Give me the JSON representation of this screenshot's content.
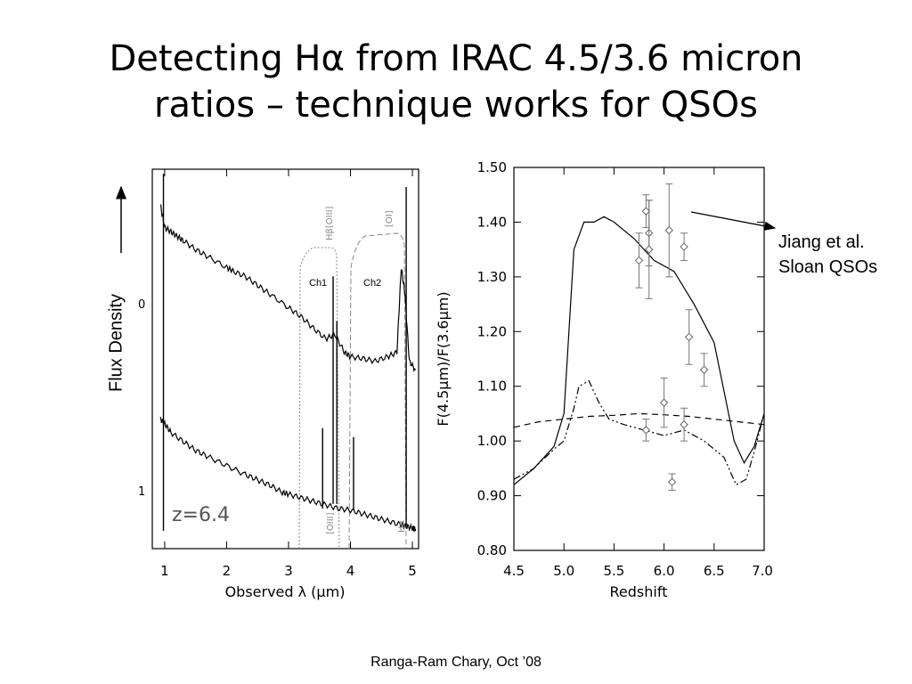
{
  "title": {
    "line1": "Detecting Hα from IRAC 4.5/3.6 micron",
    "line2": "ratios – technique works for QSOs"
  },
  "footer": "Ranga-Ram Chary, Oct ’08",
  "flux_label": "Flux Density",
  "annotation": {
    "line1": "Jiang et al.",
    "line2": "Sloan QSOs"
  },
  "chart_data": [
    {
      "type": "line",
      "panel": "spectrum",
      "xlabel": "Observed λ (μm)",
      "xticks": [
        "1",
        "2",
        "3",
        "4",
        "5"
      ],
      "xlim": [
        0.8,
        5.1
      ],
      "ytick_labels": [
        "0",
        "1"
      ],
      "filter_labels": [
        "Ch1",
        "Ch2"
      ],
      "line_labels": [
        "Hβ[OIII]",
        "[OI]",
        "[OIII]",
        "Hα"
      ],
      "redshift_label": "z=6.4",
      "series": [
        {
          "x": [
            0.93,
            1.0,
            1.1,
            1.2,
            1.3,
            1.5,
            1.7,
            2.0,
            2.1,
            2.3,
            2.5,
            2.7,
            3.0,
            3.2,
            3.4,
            3.6,
            3.75,
            3.9,
            4.0,
            4.2,
            4.4,
            4.6,
            4.75,
            4.82,
            4.88,
            4.95,
            5.05
          ],
          "y": [
            4.2,
            3.95,
            3.9,
            3.85,
            3.8,
            3.7,
            3.62,
            3.5,
            3.46,
            3.4,
            3.3,
            3.2,
            3.05,
            2.95,
            2.82,
            2.7,
            2.75,
            2.55,
            2.5,
            2.48,
            2.45,
            2.5,
            2.55,
            3.5,
            3.2,
            2.45,
            2.35
          ]
        },
        {
          "x": [
            0.93,
            1.0,
            1.1,
            1.3,
            1.5,
            1.7,
            2.0,
            2.3,
            2.5,
            2.7,
            2.9,
            3.0,
            3.2,
            3.4,
            3.6,
            3.8,
            4.0,
            4.2,
            4.4,
            4.6,
            4.8,
            4.9,
            5.0,
            5.05
          ],
          "y": [
            1.8,
            1.75,
            1.65,
            1.55,
            1.45,
            1.38,
            1.28,
            1.18,
            1.12,
            1.06,
            0.98,
            0.96,
            0.92,
            0.88,
            0.84,
            0.8,
            0.78,
            0.74,
            0.7,
            0.66,
            0.62,
            0.6,
            0.58,
            0.57
          ]
        }
      ]
    },
    {
      "type": "line",
      "panel": "ratio",
      "xlabel": "Redshift",
      "ylabel": "F(4.5μm)/F(3.6μm)",
      "xlim": [
        4.5,
        7.0
      ],
      "ylim": [
        0.8,
        1.5
      ],
      "xticks": [
        "4.5",
        "5.0",
        "5.5",
        "6.0",
        "6.5",
        "7.0"
      ],
      "yticks": [
        "0.80",
        "0.90",
        "1.00",
        "1.10",
        "1.20",
        "1.30",
        "1.40",
        "1.50"
      ],
      "series": [
        {
          "x": [
            4.5,
            4.7,
            4.9,
            5.0,
            5.1,
            5.2,
            5.3,
            5.4,
            5.5,
            5.7,
            5.9,
            6.1,
            6.3,
            6.5,
            6.7,
            6.8,
            6.9,
            7.0
          ],
          "y": [
            0.92,
            0.95,
            0.99,
            1.05,
            1.35,
            1.4,
            1.4,
            1.41,
            1.4,
            1.37,
            1.33,
            1.31,
            1.25,
            1.18,
            1.0,
            0.96,
            0.99,
            1.05
          ]
        },
        {
          "x": [
            4.5,
            4.7,
            4.9,
            5.0,
            5.1,
            5.15,
            5.25,
            5.35,
            5.45,
            5.6,
            5.8,
            6.0,
            6.2,
            6.4,
            6.6,
            6.72,
            6.82,
            6.9,
            7.0
          ],
          "y": [
            0.93,
            0.95,
            0.985,
            1.0,
            1.06,
            1.1,
            1.11,
            1.07,
            1.04,
            1.03,
            1.02,
            1.01,
            1.02,
            1.0,
            0.97,
            0.92,
            0.93,
            0.98,
            1.05
          ]
        },
        {
          "x": [
            4.5,
            4.75,
            5.0,
            5.25,
            5.5,
            5.75,
            6.0,
            6.25,
            6.5,
            6.75,
            7.0
          ],
          "y": [
            1.025,
            1.035,
            1.04,
            1.045,
            1.047,
            1.05,
            1.048,
            1.045,
            1.04,
            1.035,
            1.03
          ]
        }
      ],
      "points": [
        {
          "x": 5.75,
          "y": 1.33,
          "err": 0.05
        },
        {
          "x": 5.82,
          "y": 1.42,
          "err": 0.03
        },
        {
          "x": 5.85,
          "y": 1.38,
          "err": 0.06
        },
        {
          "x": 5.85,
          "y": 1.35,
          "err": 0.09
        },
        {
          "x": 6.05,
          "y": 1.385,
          "err": 0.085
        },
        {
          "x": 6.2,
          "y": 1.355,
          "err": 0.025
        },
        {
          "x": 6.25,
          "y": 1.19,
          "err": 0.05
        },
        {
          "x": 6.4,
          "y": 1.13,
          "err": 0.03
        },
        {
          "x": 6.0,
          "y": 1.07,
          "err": 0.045
        },
        {
          "x": 5.82,
          "y": 1.02,
          "err": 0.02
        },
        {
          "x": 6.2,
          "y": 1.03,
          "err": 0.03
        },
        {
          "x": 6.08,
          "y": 0.925,
          "err": 0.015
        }
      ]
    }
  ]
}
